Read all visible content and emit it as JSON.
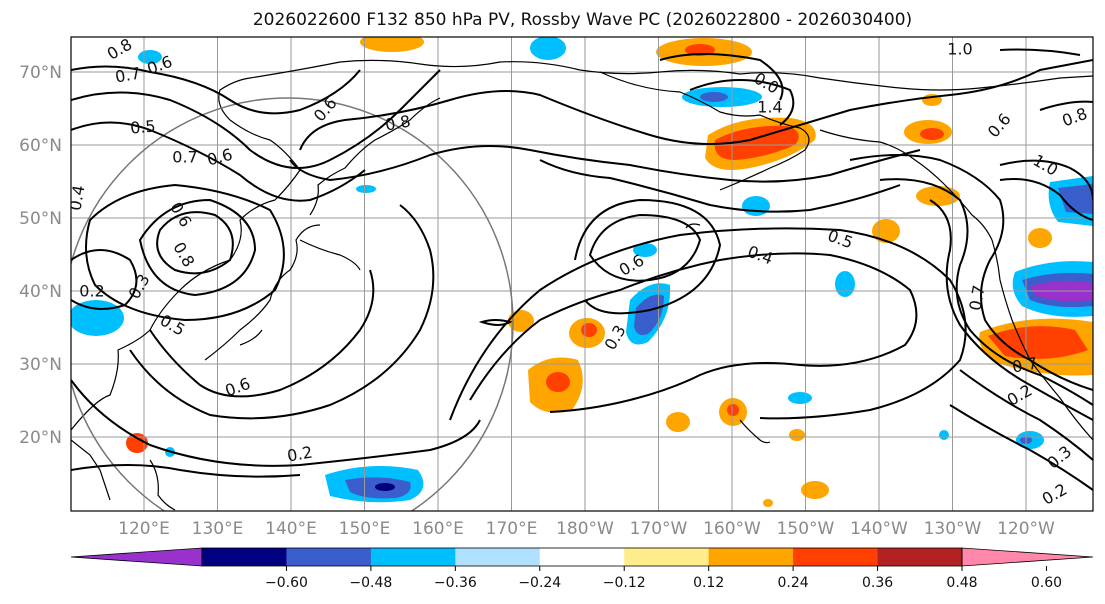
{
  "title": "2026022600 F132 850 hPa PV, Rossby Wave PC (2026022800 - 2026030400)",
  "lat_labels": [
    "70°N",
    "60°N",
    "50°N",
    "40°N",
    "30°N",
    "20°N"
  ],
  "lon_labels": [
    "120°E",
    "130°E",
    "140°E",
    "150°E",
    "160°E",
    "170°E",
    "180°W",
    "170°W",
    "160°W",
    "150°W",
    "140°W",
    "130°W",
    "120°W"
  ],
  "colorbar": {
    "ticks": [
      "−0.60",
      "−0.48",
      "−0.36",
      "−0.24",
      "−0.12",
      "0.12",
      "0.24",
      "0.36",
      "0.48",
      "0.60"
    ],
    "colors": [
      "#9932cc",
      "#000080",
      "#3a5fcd",
      "#00bfff",
      "#b0e2ff",
      "#ffffff",
      "#ffec8b",
      "#ffa500",
      "#ff4000",
      "#b22222",
      "#ff88aa"
    ]
  },
  "contour_labels": [
    "0.8",
    "0.7",
    "0.6",
    "0.5",
    "0.7",
    "0.6",
    "0.6",
    "0.8",
    "0.4",
    "0.6",
    "0.8",
    "0.2",
    "0.3",
    "0.5",
    "0.6",
    "0.2",
    "0.6",
    "0.4",
    "0.5",
    "0.3",
    "1.0",
    "1.4",
    "0.0",
    "1.0",
    "0.8",
    "0.6",
    "0.7",
    "0.7",
    "0.2",
    "0.3",
    "0.2"
  ]
}
